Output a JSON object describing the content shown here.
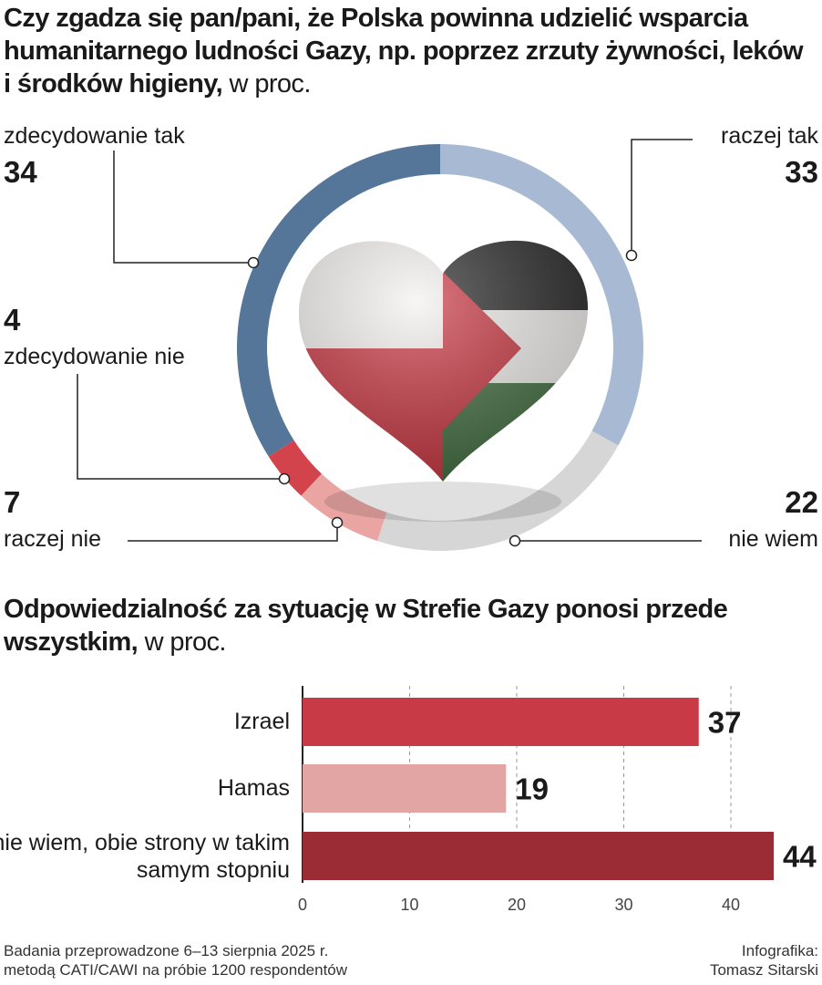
{
  "chart_data": [
    {
      "type": "donut",
      "title": "Czy zgadza się pan/pani, że Polska powinna udzielić wsparcia humanitarnego ludności Gazy, np. poprzez zrzuty żywności, leków i środków higieny,",
      "unit": "w proc.",
      "categories": [
        "raczej tak",
        "nie wiem",
        "raczej nie",
        "zdecydowanie nie",
        "zdecydowanie tak"
      ],
      "values": [
        33,
        22,
        7,
        4,
        34
      ],
      "colors": [
        "#a7b9d3",
        "#d6d6d6",
        "#eaa5a3",
        "#d2434b",
        "#557599"
      ]
    },
    {
      "type": "bar",
      "title": "Odpowiedzialność za sytuację w Strefie Gazy ponosi przede wszystkim,",
      "unit": "w proc.",
      "categories": [
        "Izrael",
        "Hamas",
        "nie wiem, obie strony w takim samym stopniu"
      ],
      "values": [
        37,
        19,
        44
      ],
      "colors": [
        "#c73a46",
        "#e3a5a3",
        "#9b2c35"
      ],
      "xlim": [
        0,
        44
      ],
      "xticks": [
        0,
        10,
        20,
        30,
        40
      ],
      "grid": true
    }
  ],
  "footer": {
    "source": [
      "Badania przeprowadzone 6–13 sierpnia 2025 r.",
      "metodą CATI/CAWI na próbie 1200 respondentów"
    ],
    "credit": [
      "Infografika:",
      "Tomasz Sitarski"
    ]
  }
}
